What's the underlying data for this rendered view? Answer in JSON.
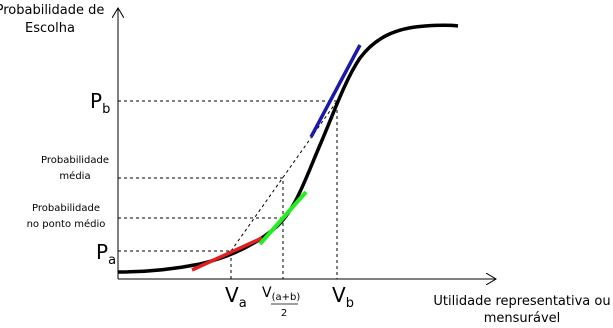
{
  "y_axis_label": {
    "line1": "Probabilidade de",
    "line2": "Escolha"
  },
  "x_axis_label": {
    "line1": "Utilidade representativa ou",
    "line2": "mensurável"
  },
  "y_labels": {
    "p_b": {
      "main": "P",
      "sub": "b"
    },
    "prob_media": {
      "line1": "Probabilidade",
      "line2": "média"
    },
    "prob_ponto_medio": {
      "line1": "Probabilidade",
      "line2": "no ponto médio"
    },
    "p_a": {
      "main": "P",
      "sub": "a"
    }
  },
  "x_labels": {
    "v_a": {
      "main": "V",
      "sub": "a"
    },
    "v_mid": {
      "main": "V",
      "sub": "(a+b)",
      "denominator": "2"
    },
    "v_b": {
      "main": "V",
      "sub": "b"
    }
  }
}
